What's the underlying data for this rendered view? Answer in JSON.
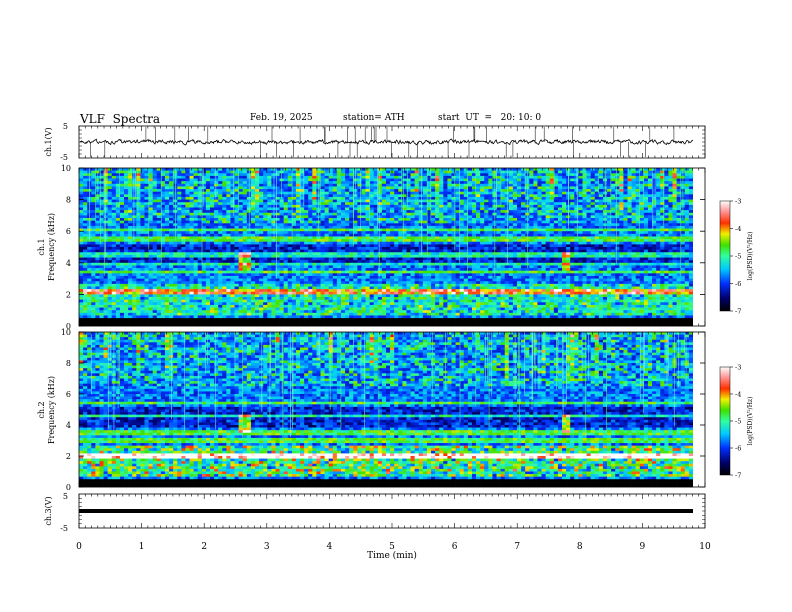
{
  "header": {
    "title": "VLF  Spectra",
    "date": "Feb. 19, 2025",
    "station": "station= ATH",
    "start_ut": "start  UT  =   20: 10: 0"
  },
  "chart_data": [
    {
      "type": "line",
      "panel": "ch1-waveform",
      "ylabel": "ch.1(V)",
      "ylim": [
        -5,
        5
      ],
      "yticks": [
        "5",
        "-5"
      ],
      "x_range_min": [
        0,
        9.82
      ],
      "series": [
        {
          "values": "noisy waveform near 0 V with spikes"
        }
      ]
    },
    {
      "type": "heatmap",
      "panel": "ch1-spectrogram",
      "ylabel": "ch.1\nFrequency (kHz)",
      "ylabel_lines": [
        "ch.1",
        "Frequency  (kHz)"
      ],
      "ylim": [
        0,
        10
      ],
      "yticks": [
        "0",
        "2",
        "4",
        "6",
        "8",
        "10"
      ],
      "colorbar": {
        "label": "log(PSD)(V²/Hz)",
        "range": [
          -7,
          -3
        ],
        "ticks": [
          "-3",
          "-4",
          "-5",
          "-6",
          "-7"
        ]
      },
      "features": {
        "band_khz": [
          2.0,
          2.4
        ],
        "lines_khz": [
          3.4,
          3.9,
          4.5,
          5.5,
          6.1
        ],
        "bursts_min": [
          2.65,
          7.8
        ]
      }
    },
    {
      "type": "heatmap",
      "panel": "ch2-spectrogram",
      "ylabel_lines": [
        "ch.2",
        "Frequency  (kHz)"
      ],
      "ylim": [
        0,
        10
      ],
      "yticks": [
        "0",
        "2",
        "4",
        "6",
        "8",
        "10"
      ],
      "colorbar": {
        "label": "log(PSD)(V²/Hz)",
        "range": [
          -7,
          -3
        ],
        "ticks": [
          "-3",
          "-4",
          "-5",
          "-6",
          "-7"
        ]
      },
      "features": {
        "band_khz": [
          1.9,
          2.2
        ],
        "lines_khz": [
          3.0,
          3.5,
          4.6,
          5.4
        ],
        "bursts_min": [
          2.65,
          7.8
        ]
      }
    },
    {
      "type": "line",
      "panel": "ch3-waveform",
      "ylabel": "ch.3(V)",
      "ylim": [
        -5,
        5
      ],
      "yticks": [
        "5",
        "-5"
      ],
      "series": [
        {
          "values": "flat near -1 V"
        }
      ]
    }
  ],
  "xaxis": {
    "label": "Time  (min)",
    "range": [
      0,
      10
    ],
    "ticks": [
      "0",
      "1",
      "2",
      "3",
      "4",
      "5",
      "6",
      "7",
      "8",
      "9",
      "10"
    ]
  },
  "colors": {
    "waveform": "#000000",
    "frame": "#000000"
  }
}
